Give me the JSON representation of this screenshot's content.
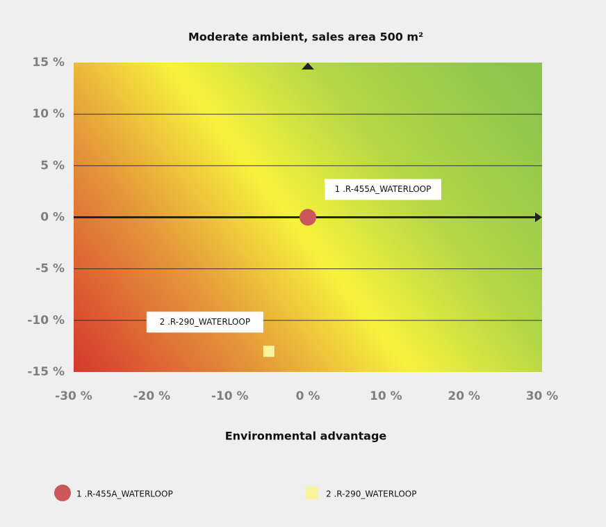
{
  "chart_data": {
    "type": "scatter",
    "title": "Moderate ambient, sales area 500 m²",
    "x_label": "Environmental advantage",
    "xlim": [
      -30,
      30
    ],
    "xticks": [
      {
        "value": -30,
        "label": "-30 %"
      },
      {
        "value": -20,
        "label": "-20 %"
      },
      {
        "value": -10,
        "label": "-10 %"
      },
      {
        "value": 0,
        "label": "0 %"
      },
      {
        "value": 10,
        "label": "10 %"
      },
      {
        "value": 20,
        "label": "20 %"
      },
      {
        "value": 30,
        "label": "30 %"
      }
    ],
    "ylim": [
      -15,
      15
    ],
    "yticks": [
      {
        "value": -15,
        "label": "-15 %"
      },
      {
        "value": -10,
        "label": "-10 %"
      },
      {
        "value": -5,
        "label": "-5 %"
      },
      {
        "value": 0,
        "label": "0 %"
      },
      {
        "value": 5,
        "label": "5 %"
      },
      {
        "value": 10,
        "label": "10 %"
      },
      {
        "value": 15,
        "label": "15 %"
      }
    ],
    "grid": true,
    "legend_position": "bottom",
    "series": [
      {
        "name": "1 .R-455A_WATERLOOP",
        "color": "#c9575b",
        "marker": "circle",
        "x": [
          0
        ],
        "values": [
          0
        ]
      },
      {
        "name": "2 .R-290_WATERLOOP",
        "color": "#f8f39c",
        "marker": "square",
        "x": [
          -5
        ],
        "values": [
          -13
        ]
      }
    ]
  }
}
